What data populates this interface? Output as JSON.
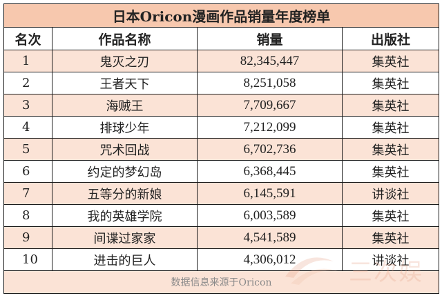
{
  "title": "日本Oricon漫画作品销量年度榜单",
  "headers": {
    "rank": "名次",
    "title": "作品名称",
    "sales": "销量",
    "publisher": "出版社"
  },
  "rows": [
    {
      "rank": "1",
      "title": "鬼灭之刃",
      "sales": "82,345,447",
      "publisher": "集英社"
    },
    {
      "rank": "2",
      "title": "王者天下",
      "sales": "8,251,058",
      "publisher": "集英社"
    },
    {
      "rank": "3",
      "title": "海贼王",
      "sales": "7,709,667",
      "publisher": "集英社"
    },
    {
      "rank": "4",
      "title": "排球少年",
      "sales": "7,212,099",
      "publisher": "集英社"
    },
    {
      "rank": "5",
      "title": "咒术回战",
      "sales": "6,702,736",
      "publisher": "集英社"
    },
    {
      "rank": "6",
      "title": "约定的梦幻岛",
      "sales": "6,368,445",
      "publisher": "集英社"
    },
    {
      "rank": "7",
      "title": "五等分的新娘",
      "sales": "6,145,591",
      "publisher": "讲谈社"
    },
    {
      "rank": "8",
      "title": "我的英雄学院",
      "sales": "6,003,589",
      "publisher": "集英社"
    },
    {
      "rank": "9",
      "title": "间谍过家家",
      "sales": "4,541,589",
      "publisher": "集英社"
    },
    {
      "rank": "10",
      "title": "进击的巨人",
      "sales": "4,306,012",
      "publisher": "讲谈社"
    }
  ],
  "footer": "数据信息来源于Oricon",
  "watermark": "三次娱",
  "colors": {
    "title_bg": "#f7c8ae",
    "stripe": "#fbe3d6",
    "border": "#1a1a1a"
  }
}
